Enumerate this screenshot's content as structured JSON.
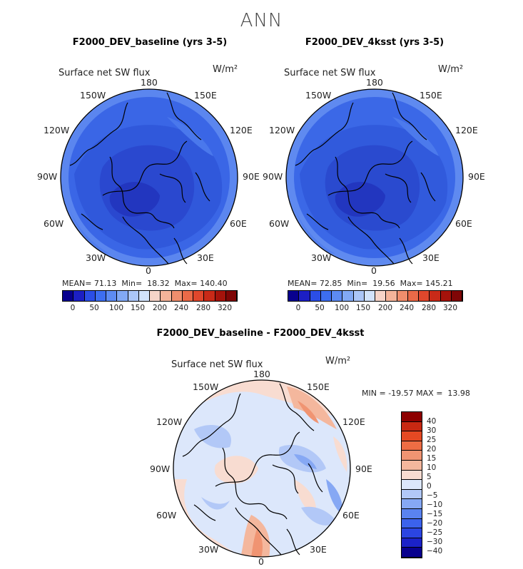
{
  "page": {
    "title": "ANN"
  },
  "colors": {
    "seq_colorbar": [
      "#08008e",
      "#1c1fc4",
      "#2b4ee6",
      "#3d6ef0",
      "#5d8bf2",
      "#82a9f4",
      "#abc6f7",
      "#d2e3fb",
      "#f6d4c8",
      "#f4b49a",
      "#f08e6d",
      "#ea6a48",
      "#e0472c",
      "#c92a18",
      "#a5130b",
      "#7f0606"
    ],
    "div_colorbar": [
      "#08008e",
      "#1b22c8",
      "#2b45e2",
      "#3b62ec",
      "#5a83f0",
      "#86a8f4",
      "#b2c8f7",
      "#dce7fb",
      "#f8dcd1",
      "#f4b79d",
      "#f09472",
      "#ed6d44",
      "#e54923",
      "#c82812",
      "#8d0000"
    ]
  },
  "panels": [
    {
      "title": "F2000_DEV_baseline (yrs 3-5)",
      "variable": "Surface net SW flux",
      "units": "W/m²",
      "lon_labels": {
        "top": "180",
        "tr": "150E",
        "rt": "120E",
        "right": "90E",
        "rb": "60E",
        "br": "30E",
        "bottom": "0",
        "bl": "30W",
        "lb": "60W",
        "left": "90W",
        "lt": "120W",
        "tl": "150W"
      },
      "stats": {
        "mean_label": "MEAN=",
        "mean": "71.13",
        "min_label": "Min=",
        "min": "18.32",
        "max_label": "Max=",
        "max": "140.40"
      },
      "colorbar_ticks": [
        "0",
        "50",
        "100",
        "150",
        "200",
        "240",
        "280",
        "320"
      ]
    },
    {
      "title": "F2000_DEV_4ksst (yrs 3-5)",
      "variable": "Surface net SW flux",
      "units": "W/m²",
      "lon_labels": {
        "top": "180",
        "tr": "150E",
        "rt": "120E",
        "right": "90E",
        "rb": "60E",
        "br": "30E",
        "bottom": "0",
        "bl": "30W",
        "lb": "60W",
        "left": "90W",
        "lt": "120W",
        "tl": "150W"
      },
      "stats": {
        "mean_label": "MEAN=",
        "mean": "72.85",
        "min_label": "Min=",
        "min": "19.56",
        "max_label": "Max=",
        "max": "145.21"
      },
      "colorbar_ticks": [
        "0",
        "50",
        "100",
        "150",
        "200",
        "240",
        "280",
        "320"
      ]
    }
  ],
  "diff_panel": {
    "title": "F2000_DEV_baseline - F2000_DEV_4ksst",
    "variable": "Surface net SW flux",
    "units": "W/m²",
    "lon_labels": {
      "top": "180",
      "tr": "150E",
      "rt": "120E",
      "right": "90E",
      "rb": "60E",
      "br": "30E",
      "bottom": "0",
      "bl": "30W",
      "lb": "60W",
      "left": "90W",
      "lt": "120W",
      "tl": "150W"
    },
    "stats": {
      "min_label": "MIN =",
      "min": "-19.57",
      "max_label": "MAX =",
      "max": "13.98"
    },
    "colorbar_ticks": [
      "40",
      "30",
      "25",
      "20",
      "15",
      "10",
      "5",
      "0",
      "−5",
      "−10",
      "−15",
      "−20",
      "−25",
      "−30",
      "−40"
    ]
  }
}
